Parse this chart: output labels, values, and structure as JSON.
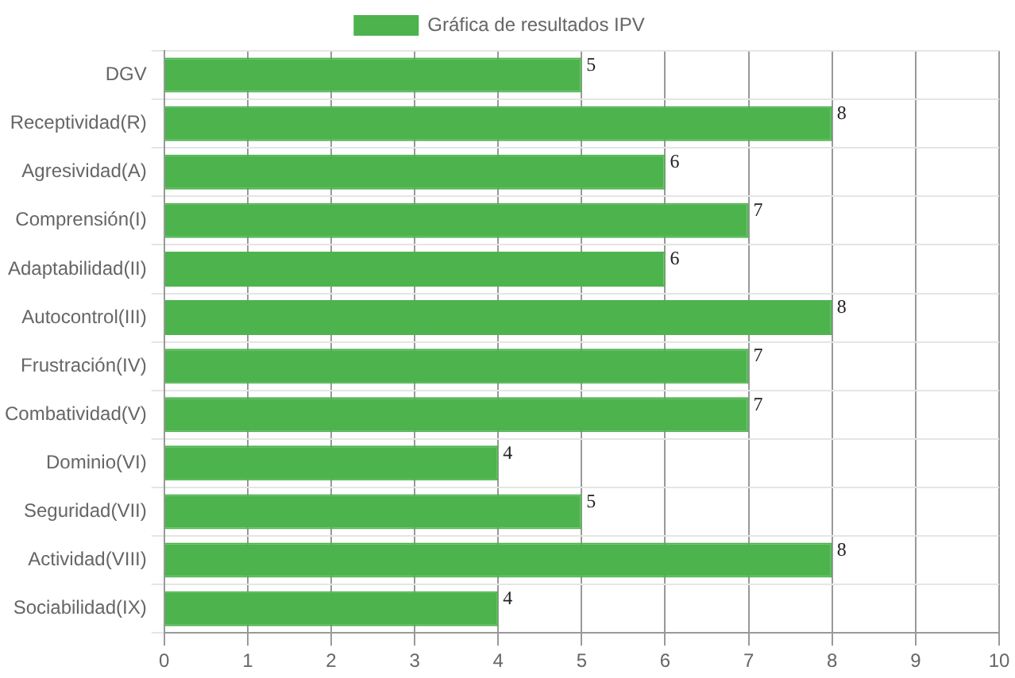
{
  "chart_data": {
    "type": "bar",
    "orientation": "horizontal",
    "categories": [
      "DGV",
      "Receptividad(R)",
      "Agresividad(A)",
      "Comprensión(I)",
      "Adaptabilidad(II)",
      "Autocontrol(III)",
      "Frustración(IV)",
      "Combatividad(V)",
      "Dominio(VI)",
      "Seguridad(VII)",
      "Actividad(VIII)",
      "Sociabilidad(IX)"
    ],
    "series": [
      {
        "name": "Gráfica de resultados IPV",
        "color": "#4db34d",
        "values": [
          5,
          8,
          6,
          7,
          6,
          8,
          7,
          7,
          4,
          5,
          8,
          4
        ]
      }
    ],
    "xlim": [
      0,
      10
    ],
    "xticks": [
      0,
      1,
      2,
      3,
      4,
      5,
      6,
      7,
      8,
      9,
      10
    ],
    "grid": true,
    "legend": "top",
    "data_labels": true
  }
}
